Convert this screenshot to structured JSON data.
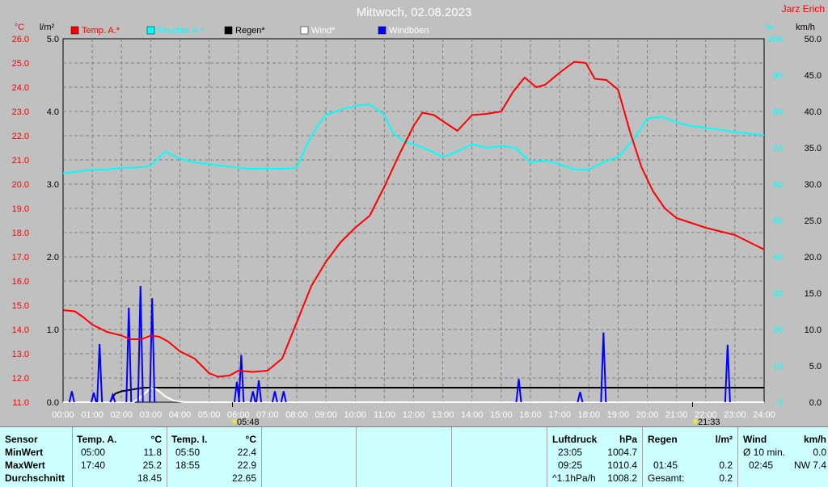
{
  "header": {
    "title": "Mittwoch, 02.08.2023",
    "station": "Jarz Erich",
    "unit_temp": "°C",
    "unit_rain": "l/m²",
    "unit_hum": "%",
    "unit_wind": "km/h"
  },
  "chart_data": {
    "type": "line",
    "x_ticks": [
      "00:00",
      "01:00",
      "02:00",
      "03:00",
      "04:00",
      "05:00",
      "06:00",
      "07:00",
      "08:00",
      "09:00",
      "10:00",
      "11:00",
      "12:00",
      "13:00",
      "14:00",
      "15:00",
      "16:00",
      "17:00",
      "18:00",
      "19:00",
      "20:00",
      "21:00",
      "22:00",
      "23:00",
      "24:00"
    ],
    "axes": {
      "temp": {
        "label": "°C",
        "range": [
          11.0,
          26.0
        ],
        "ticks": [
          "11.0",
          "12.0",
          "13.0",
          "14.0",
          "15.0",
          "16.0",
          "17.0",
          "18.0",
          "19.0",
          "20.0",
          "21.0",
          "22.0",
          "23.0",
          "24.0",
          "25.0",
          "26.0"
        ]
      },
      "rain": {
        "label": "l/m²",
        "range": [
          0.0,
          5.0
        ],
        "ticks": [
          "0.0",
          "1.0",
          "2.0",
          "3.0",
          "4.0",
          "5.0"
        ]
      },
      "humidity": {
        "label": "%",
        "range": [
          0,
          100
        ],
        "ticks": [
          "0",
          "10",
          "20",
          "30",
          "40",
          "50",
          "60",
          "70",
          "80",
          "90",
          "100"
        ]
      },
      "wind": {
        "label": "km/h",
        "range": [
          0.0,
          50.0
        ],
        "ticks": [
          "0.0",
          "5.0",
          "10.0",
          "15.0",
          "20.0",
          "25.0",
          "30.0",
          "35.0",
          "40.0",
          "45.0",
          "50.0"
        ]
      }
    },
    "legend": [
      {
        "name": "Temp. A.*",
        "color": "#ff0000"
      },
      {
        "name": "Feuchte A.*",
        "color": "#00ffff"
      },
      {
        "name": "Regen*",
        "color": "#000000"
      },
      {
        "name": "Wind*",
        "color": "#ffffff"
      },
      {
        "name": "Windböen",
        "color": "#0000ff"
      }
    ],
    "markers": [
      {
        "time": 5.8,
        "label": "05:48"
      },
      {
        "time": 21.55,
        "label": "21:33"
      }
    ],
    "series": [
      {
        "name": "Temp. A.*",
        "axis": "temp",
        "color": "#ff0000",
        "points": [
          [
            0,
            14.8
          ],
          [
            0.4,
            14.75
          ],
          [
            0.7,
            14.5
          ],
          [
            1,
            14.2
          ],
          [
            1.5,
            13.9
          ],
          [
            2,
            13.75
          ],
          [
            2.3,
            13.6
          ],
          [
            2.7,
            13.6
          ],
          [
            3,
            13.75
          ],
          [
            3.3,
            13.7
          ],
          [
            3.6,
            13.5
          ],
          [
            4,
            13.1
          ],
          [
            4.5,
            12.8
          ],
          [
            5,
            12.2
          ],
          [
            5.3,
            12.05
          ],
          [
            5.7,
            12.1
          ],
          [
            6,
            12.3
          ],
          [
            6.5,
            12.25
          ],
          [
            7,
            12.3
          ],
          [
            7.5,
            12.8
          ],
          [
            8,
            14.3
          ],
          [
            8.5,
            15.8
          ],
          [
            9,
            16.8
          ],
          [
            9.5,
            17.6
          ],
          [
            10,
            18.2
          ],
          [
            10.5,
            18.7
          ],
          [
            11,
            19.9
          ],
          [
            11.5,
            21.2
          ],
          [
            12,
            22.4
          ],
          [
            12.3,
            22.95
          ],
          [
            12.7,
            22.85
          ],
          [
            13,
            22.6
          ],
          [
            13.5,
            22.2
          ],
          [
            14,
            22.85
          ],
          [
            14.5,
            22.9
          ],
          [
            15,
            23.0
          ],
          [
            15.4,
            23.8
          ],
          [
            15.8,
            24.4
          ],
          [
            16.2,
            24.0
          ],
          [
            16.5,
            24.1
          ],
          [
            17,
            24.6
          ],
          [
            17.5,
            25.05
          ],
          [
            17.9,
            25.0
          ],
          [
            18.2,
            24.35
          ],
          [
            18.6,
            24.3
          ],
          [
            19,
            23.9
          ],
          [
            19.4,
            22.2
          ],
          [
            19.8,
            20.7
          ],
          [
            20.2,
            19.7
          ],
          [
            20.6,
            19.0
          ],
          [
            21,
            18.6
          ],
          [
            21.5,
            18.4
          ],
          [
            22,
            18.2
          ],
          [
            22.5,
            18.05
          ],
          [
            23,
            17.9
          ],
          [
            23.5,
            17.6
          ],
          [
            24,
            17.3
          ]
        ]
      },
      {
        "name": "Feuchte A.*",
        "axis": "humidity",
        "color": "#00ffff",
        "points": [
          [
            0,
            63
          ],
          [
            0.5,
            63.5
          ],
          [
            1,
            64
          ],
          [
            1.5,
            64
          ],
          [
            2,
            64.5
          ],
          [
            2.5,
            64.5
          ],
          [
            3,
            65
          ],
          [
            3.5,
            69
          ],
          [
            4,
            67
          ],
          [
            4.5,
            66
          ],
          [
            5,
            65.5
          ],
          [
            5.5,
            65
          ],
          [
            6,
            64.5
          ],
          [
            6.5,
            64.2
          ],
          [
            7,
            64.3
          ],
          [
            7.5,
            64.2
          ],
          [
            8,
            64.5
          ],
          [
            8.3,
            70
          ],
          [
            8.7,
            76
          ],
          [
            9,
            79
          ],
          [
            9.5,
            80.5
          ],
          [
            10,
            81.5
          ],
          [
            10.5,
            82
          ],
          [
            11,
            79
          ],
          [
            11.3,
            74
          ],
          [
            11.7,
            71.5
          ],
          [
            12,
            71
          ],
          [
            12.5,
            69.5
          ],
          [
            13,
            67.5
          ],
          [
            13.5,
            69
          ],
          [
            14,
            71
          ],
          [
            14.5,
            70
          ],
          [
            15,
            70.5
          ],
          [
            15.5,
            70
          ],
          [
            16,
            66
          ],
          [
            16.5,
            66.5
          ],
          [
            17,
            65.5
          ],
          [
            17.5,
            64
          ],
          [
            18,
            64
          ],
          [
            18.5,
            66
          ],
          [
            19,
            67.5
          ],
          [
            19.5,
            72
          ],
          [
            20,
            78
          ],
          [
            20.5,
            78.5
          ],
          [
            21,
            77
          ],
          [
            21.5,
            76
          ],
          [
            22,
            75.5
          ],
          [
            22.5,
            75
          ],
          [
            23,
            74.3
          ],
          [
            24,
            73.5
          ]
        ]
      },
      {
        "name": "Regen*",
        "axis": "rain",
        "color": "#000000",
        "points": [
          [
            0,
            0
          ],
          [
            1.6,
            0
          ],
          [
            1.75,
            0.1
          ],
          [
            1.8,
            0.12
          ],
          [
            2,
            0.15
          ],
          [
            2.3,
            0.17
          ],
          [
            2.75,
            0.2
          ],
          [
            24,
            0.2
          ]
        ]
      },
      {
        "name": "Wind*",
        "axis": "wind",
        "color": "#ffffff",
        "points": [
          [
            0,
            0
          ],
          [
            2.4,
            0
          ],
          [
            2.6,
            0.5
          ],
          [
            2.8,
            1.2
          ],
          [
            3.0,
            2.0
          ],
          [
            3.2,
            1.8
          ],
          [
            3.5,
            0.8
          ],
          [
            3.8,
            0.2
          ],
          [
            4.2,
            0
          ],
          [
            24,
            0
          ]
        ]
      },
      {
        "name": "Windböen",
        "axis": "wind",
        "color": "#0000ff",
        "spikes": [
          [
            0.3,
            1.5
          ],
          [
            1.05,
            1.3
          ],
          [
            1.25,
            8.0
          ],
          [
            1.7,
            1.0
          ],
          [
            2.25,
            13.0
          ],
          [
            2.65,
            16.0
          ],
          [
            3.05,
            14.3
          ],
          [
            5.95,
            2.8
          ],
          [
            6.1,
            6.5
          ],
          [
            6.5,
            1.5
          ],
          [
            6.7,
            3.0
          ],
          [
            7.25,
            1.5
          ],
          [
            7.55,
            1.5
          ],
          [
            15.6,
            3.2
          ],
          [
            17.7,
            1.4
          ],
          [
            18.5,
            9.6
          ],
          [
            22.75,
            7.9
          ]
        ]
      }
    ]
  },
  "panel": {
    "sensor": {
      "title": "Sensor",
      "rows": [
        "MinWert",
        "MaxWert",
        "Durchschnitt"
      ]
    },
    "temp_a": {
      "title": "Temp. A.",
      "unit": "°C",
      "times": [
        "05:00",
        "17:40",
        ""
      ],
      "values": [
        "11.8",
        "25.2",
        "18.45"
      ]
    },
    "temp_i": {
      "title": "Temp. I.",
      "unit": "°C",
      "times": [
        "05:50",
        "18:55",
        ""
      ],
      "values": [
        "22.4",
        "22.9",
        "22.65"
      ]
    },
    "pressure": {
      "title": "Luftdruck",
      "unit": "hPa",
      "times": [
        "23:05",
        "09:25",
        "^1.1hPa/h"
      ],
      "values": [
        "1004.7",
        "1010.4",
        "1008.2"
      ]
    },
    "rain": {
      "title": "Regen",
      "unit": "l/m²",
      "times": [
        "",
        "01:45",
        "Gesamt:"
      ],
      "values": [
        "",
        "0.2",
        "0.2"
      ]
    },
    "wind": {
      "title": "Wind",
      "unit": "km/h",
      "times": [
        "Ø 10 min.",
        "02:45",
        ""
      ],
      "values": [
        "0.0",
        "NW 7.4",
        ""
      ]
    }
  }
}
